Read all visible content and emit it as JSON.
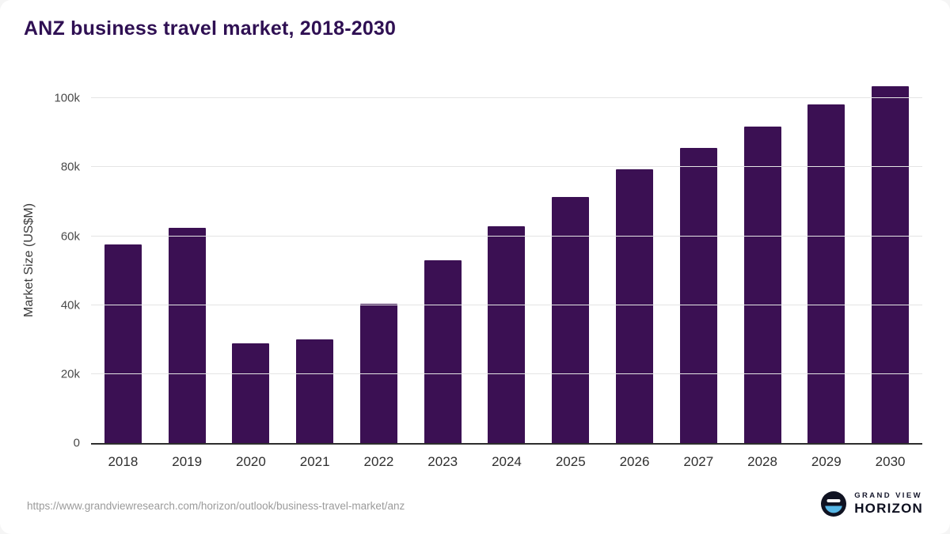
{
  "header": {
    "title": "ANZ business travel market, 2018-2030"
  },
  "footer": {
    "source_url": "https://www.grandviewresearch.com/horizon/outlook/business-travel-market/anz",
    "logo": {
      "line1": "GRAND VIEW",
      "line2": "HORIZON"
    }
  },
  "chart_data": {
    "type": "bar",
    "title": "ANZ business travel market, 2018-2030",
    "categories": [
      "2018",
      "2019",
      "2020",
      "2021",
      "2022",
      "2023",
      "2024",
      "2025",
      "2026",
      "2027",
      "2028",
      "2029",
      "2030"
    ],
    "values": [
      57600,
      62500,
      28900,
      30100,
      40400,
      53100,
      62800,
      71400,
      79300,
      85500,
      91700,
      98100,
      103500
    ],
    "xlabel": "",
    "ylabel": "Market Size (US$M)",
    "ylim": [
      0,
      106000
    ],
    "yticks": [
      {
        "value": 0,
        "label": "0"
      },
      {
        "value": 20000,
        "label": "20k"
      },
      {
        "value": 40000,
        "label": "40k"
      },
      {
        "value": 60000,
        "label": "60k"
      },
      {
        "value": 80000,
        "label": "80k"
      },
      {
        "value": 100000,
        "label": "100k"
      }
    ],
    "grid": "horizontal",
    "legend": "none",
    "bar_color": "#3b1053"
  }
}
